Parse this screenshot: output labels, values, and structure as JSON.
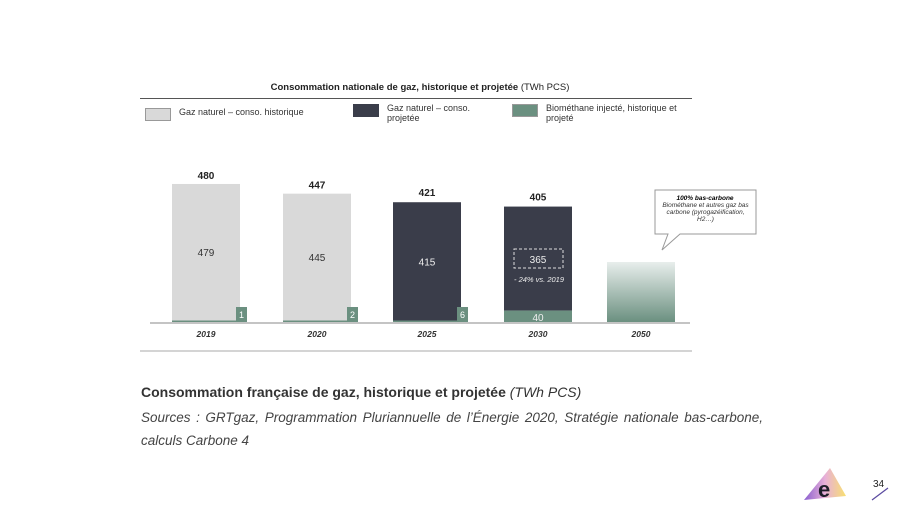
{
  "chart_data": {
    "type": "bar",
    "title": "Consommation nationale de gaz, historique et projetée",
    "unit": "(TWh PCS)",
    "categories": [
      "2019",
      "2020",
      "2025",
      "2030",
      "2050"
    ],
    "series": [
      {
        "name": "Gaz naturel – conso. historique",
        "color": "#d9d9d9",
        "values": [
          479,
          445,
          null,
          null,
          null
        ]
      },
      {
        "name": "Gaz naturel – conso. projetée",
        "color": "#3a3d4a",
        "values": [
          null,
          null,
          415,
          365,
          null
        ]
      },
      {
        "name": "Biométhane injecté, historique et projeté",
        "color": "#6b9080",
        "values": [
          1,
          2,
          6,
          40,
          null
        ]
      }
    ],
    "totals": [
      "480",
      "447",
      "421",
      "405",
      ""
    ],
    "annotations": {
      "reduction": "- 24% vs. 2019",
      "callout_title": "100% bas-carbone",
      "callout_text": "Biométhane et autres gaz bas carbone (pyrogazéification, H2…)"
    },
    "legend": "top"
  },
  "heading": "Consommation française de gaz, historique et projetée",
  "heading_unit": "(TWh PCS)",
  "sources": "Sources : GRTgaz, Programmation Pluriannuelle de l’Énergie 2020, Stratégie nationale bas-carbone, calculs Carbone 4",
  "logo_text": "e",
  "page_number": "34"
}
